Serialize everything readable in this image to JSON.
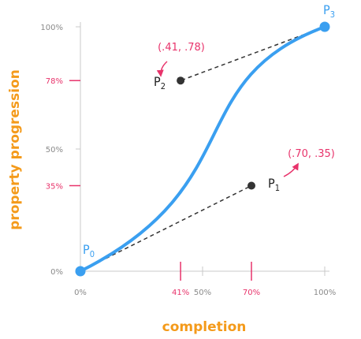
{
  "chart_data": {
    "type": "line",
    "xlabel": "completion",
    "ylabel": "property progression",
    "xlim": [
      0,
      1
    ],
    "ylim": [
      0,
      1
    ],
    "x_ticks": [
      {
        "value": 0,
        "label": "0%",
        "color": "#8a8a8a"
      },
      {
        "value": 0.41,
        "label": "41%",
        "color": "#e8336b"
      },
      {
        "value": 0.5,
        "label": "50%",
        "color": "#8a8a8a"
      },
      {
        "value": 0.7,
        "label": "70%",
        "color": "#e8336b"
      },
      {
        "value": 1,
        "label": "100%",
        "color": "#8a8a8a"
      }
    ],
    "y_ticks": [
      {
        "value": 0,
        "label": "0%",
        "color": "#8a8a8a"
      },
      {
        "value": 0.35,
        "label": "35%",
        "color": "#e8336b"
      },
      {
        "value": 0.5,
        "label": "50%",
        "color": "#8a8a8a"
      },
      {
        "value": 0.78,
        "label": "78%",
        "color": "#e8336b"
      },
      {
        "value": 1,
        "label": "100%",
        "color": "#8a8a8a"
      }
    ],
    "points": {
      "p0": {
        "x": 0,
        "y": 0,
        "label": "P",
        "sub": "0",
        "color": "#3a9ff0"
      },
      "p1": {
        "x": 0.7,
        "y": 0.35,
        "label": "P",
        "sub": "1",
        "color": "#333333"
      },
      "p2": {
        "x": 0.41,
        "y": 0.78,
        "label": "P",
        "sub": "2",
        "color": "#333333"
      },
      "p3": {
        "x": 1,
        "y": 1,
        "label": "P",
        "sub": "3",
        "color": "#3a9ff0"
      }
    },
    "annotations": {
      "p1": "(.70, .35)",
      "p2": "(.41, .78)"
    },
    "curve": {
      "type": "cubic-bezier",
      "control_points": [
        0.7,
        0.35,
        0.41,
        0.78
      ]
    },
    "colors": {
      "curve": "#3a9ff0",
      "axis": "#c8c8c8",
      "highlight": "#e8336b",
      "axis_title": "#f49a1a",
      "handle_line": "#333333"
    },
    "grid": false
  }
}
